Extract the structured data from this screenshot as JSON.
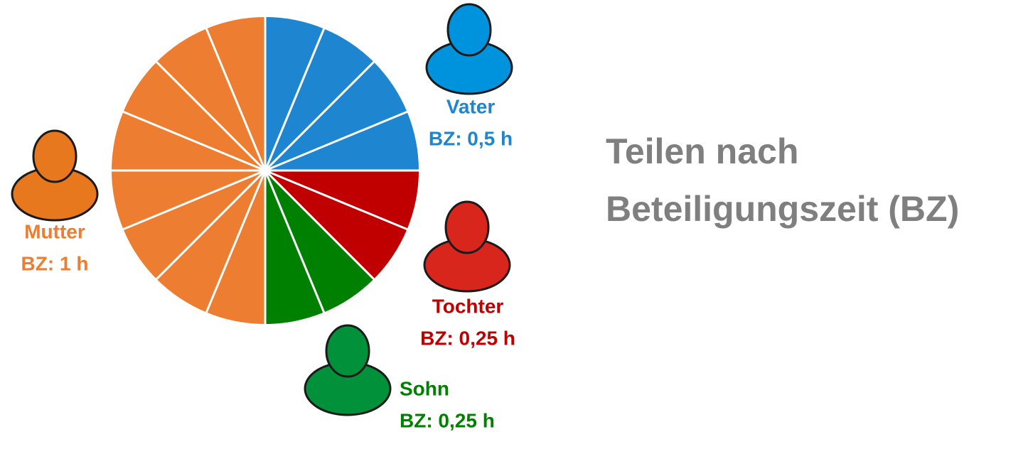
{
  "chart_data": {
    "type": "pie",
    "title": [
      "Teilen nach",
      "Beteiligungszeit (BZ)"
    ],
    "categories": [
      "Vater",
      "Tochter",
      "Sohn",
      "Mutter"
    ],
    "values": [
      0.5,
      0.25,
      0.25,
      1
    ],
    "value_labels": [
      "BZ: 0,5 h",
      "BZ: 0,25 h",
      "BZ: 0,25 h",
      "BZ: 1 h"
    ],
    "colors": [
      "#1e86d0",
      "#c00000",
      "#008000",
      "#ed7d31"
    ],
    "icon_colors": [
      "#0093dd",
      "#d9261c",
      "#00913a",
      "#e8781e"
    ]
  }
}
